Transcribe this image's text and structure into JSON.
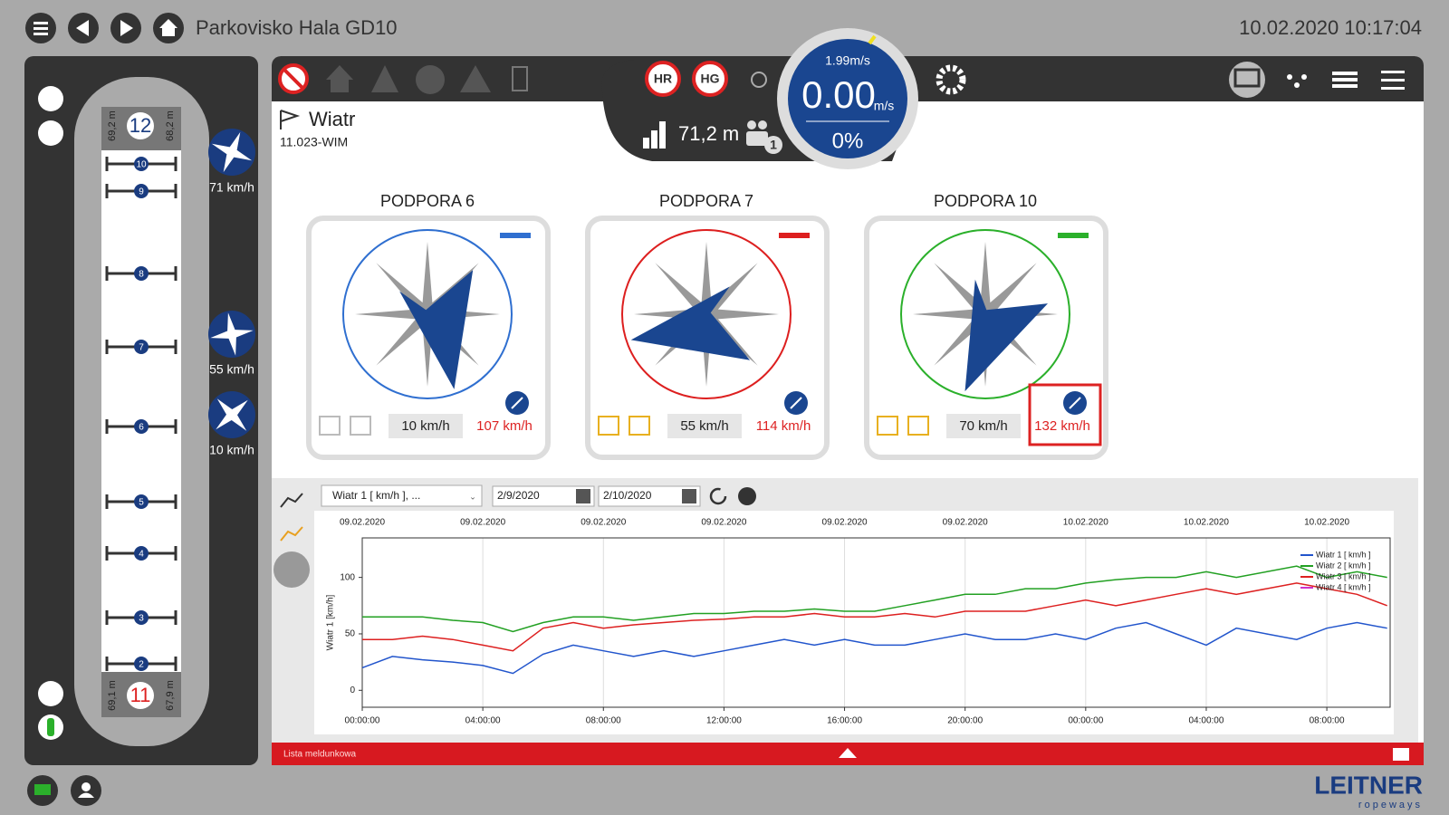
{
  "header": {
    "title": "Parkovisko Hala GD10",
    "datetime": "10.02.2020 10:17:04"
  },
  "line_map": {
    "stations": [
      {
        "number": "12",
        "lengths": [
          "69,2 m",
          "68,2 m"
        ]
      },
      {
        "number": "11",
        "lengths": [
          "69,1 m",
          "67,9 m"
        ]
      }
    ],
    "supports": [
      "10",
      "9",
      "8",
      "7",
      "6",
      "5",
      "4",
      "3",
      "2"
    ],
    "wind_sensors": [
      "71 km/h",
      "55 km/h",
      "10 km/h"
    ]
  },
  "panel": {
    "title": "Wiatr",
    "code": "11.023-WIM"
  },
  "status": {
    "brakes": [
      "HR",
      "HG"
    ],
    "position": "71,2 m",
    "passengers": "1",
    "gauge": {
      "setpoint": "1.99m/s",
      "speed": "0.00",
      "unit": "m/s",
      "load": "0%"
    }
  },
  "wind_cards": [
    {
      "title": "PODPORA 6",
      "current": "10 km/h",
      "max": "107 km/h",
      "color": "#2f6fd0"
    },
    {
      "title": "PODPORA 7",
      "current": "55 km/h",
      "max": "114 km/h",
      "color": "#dd1f1f"
    },
    {
      "title": "PODPORA 10",
      "current": "70 km/h",
      "max": "132 km/h",
      "color": "#2bb02b"
    }
  ],
  "chart_controls": {
    "selection": "Wiatr 1 [ km/h ], ...",
    "date_from": "2/9/2020",
    "date_to": "2/10/2020"
  },
  "chart_data": {
    "type": "line",
    "y_label": "Wiatr 1 [km/h]",
    "x": [
      0,
      1,
      2,
      3,
      4,
      5,
      6,
      7,
      8,
      9,
      10,
      11,
      12,
      13,
      14,
      15,
      16,
      17,
      18,
      19,
      20,
      21,
      22,
      23,
      24,
      25,
      26,
      27,
      28,
      29,
      30,
      31,
      32,
      33,
      34
    ],
    "xlim": [
      0,
      34.1
    ],
    "xticks": [
      {
        "value": 0,
        "label": "00:00:00"
      },
      {
        "value": 4,
        "label": "04:00:00"
      },
      {
        "value": 8,
        "label": "08:00:00"
      },
      {
        "value": 12,
        "label": "12:00:00"
      },
      {
        "value": 16,
        "label": "16:00:00"
      },
      {
        "value": 20,
        "label": "20:00:00"
      },
      {
        "value": 24,
        "label": "00:00:00"
      },
      {
        "value": 28,
        "label": "04:00:00"
      },
      {
        "value": 32,
        "label": "08:00:00"
      }
    ],
    "xtick_dates": [
      "09.02.2020",
      "09.02.2020",
      "09.02.2020",
      "09.02.2020",
      "09.02.2020",
      "09.02.2020",
      "10.02.2020",
      "10.02.2020",
      "10.02.2020"
    ],
    "ylim": [
      -15,
      135
    ],
    "yticks": [
      0,
      50,
      100
    ],
    "grid": "x",
    "series": [
      {
        "name": "Wiatr 1 [ km/h ]",
        "color": "#2255cc",
        "values": [
          20,
          30,
          27,
          25,
          22,
          15,
          32,
          40,
          35,
          30,
          35,
          30,
          35,
          40,
          45,
          40,
          45,
          40,
          40,
          45,
          50,
          45,
          45,
          50,
          45,
          55,
          60,
          50,
          40,
          55,
          50,
          45,
          55,
          60,
          55
        ]
      },
      {
        "name": "Wiatr 2 [ km/h ]",
        "color": "#22a022",
        "values": [
          65,
          65,
          65,
          62,
          60,
          52,
          60,
          65,
          65,
          62,
          65,
          68,
          68,
          70,
          70,
          72,
          70,
          70,
          75,
          80,
          85,
          85,
          90,
          90,
          95,
          98,
          100,
          100,
          105,
          100,
          105,
          110,
          100,
          105,
          100
        ]
      },
      {
        "name": "Wiatr 3 [ km/h ]",
        "color": "#dd2020",
        "values": [
          45,
          45,
          48,
          45,
          40,
          35,
          55,
          60,
          55,
          58,
          60,
          62,
          63,
          65,
          65,
          68,
          65,
          65,
          68,
          65,
          70,
          70,
          70,
          75,
          80,
          75,
          80,
          85,
          90,
          85,
          90,
          95,
          90,
          85,
          75
        ]
      },
      {
        "name": "Wiatr 4 [ km/h ]",
        "color": "#cc33cc",
        "values": [
          null,
          null,
          null,
          null,
          null,
          null,
          null,
          null,
          null,
          null,
          null,
          null,
          null,
          null,
          null,
          null,
          null,
          null,
          null,
          null,
          null,
          null,
          null,
          null,
          null,
          null,
          null,
          null,
          null,
          null,
          null,
          null,
          null,
          null,
          null
        ]
      }
    ]
  },
  "footer": {
    "message_list": "Lista meldunkowa",
    "brand": "LEITNER",
    "brand_sub": "ropeways"
  }
}
